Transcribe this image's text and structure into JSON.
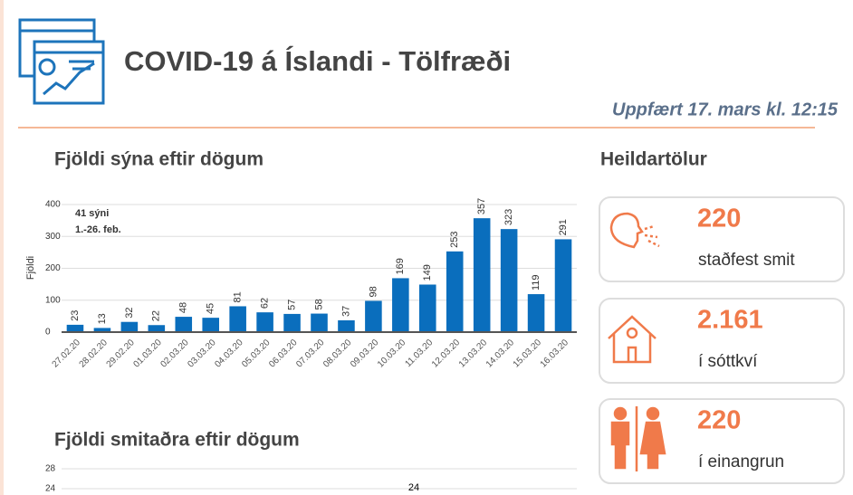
{
  "header": {
    "title": "COVID-19 á Íslandi - Tölfræði",
    "updated": "Uppfært 17. mars kl. 12:15"
  },
  "totals_title": "Heildartölur",
  "stats": [
    {
      "value": "220",
      "label": "staðfest smit"
    },
    {
      "value": "2.161",
      "label": "í sóttkví"
    },
    {
      "value": "220",
      "label": "í einangrun"
    }
  ],
  "chart_data": [
    {
      "type": "bar",
      "title": "Fjöldi sýna eftir dögum",
      "ylabel": "Fjöldi",
      "color": "#0a6ebd",
      "annotations": [
        "41 sýni",
        "1.-26. feb."
      ],
      "categories": [
        "27.02.20",
        "28.02.20",
        "29.02.20",
        "01.03.20",
        "02.03.20",
        "03.03.20",
        "04.03.20",
        "05.03.20",
        "06.03.20",
        "07.03.20",
        "08.03.20",
        "09.03.20",
        "10.03.20",
        "11.03.20",
        "12.03.20",
        "13.03.20",
        "14.03.20",
        "15.03.20",
        "16.03.20"
      ],
      "values": [
        23,
        13,
        32,
        22,
        48,
        45,
        81,
        62,
        57,
        58,
        37,
        98,
        169,
        149,
        253,
        357,
        323,
        119,
        291
      ],
      "ylim": [
        0,
        400
      ],
      "yticks": [
        0,
        100,
        200,
        300,
        400
      ],
      "grid": true
    },
    {
      "type": "bar",
      "title": "Fjöldi smitaðra eftir dögum",
      "yticks": [
        24,
        28
      ],
      "grid": true,
      "annotations": [
        "24"
      ]
    }
  ]
}
